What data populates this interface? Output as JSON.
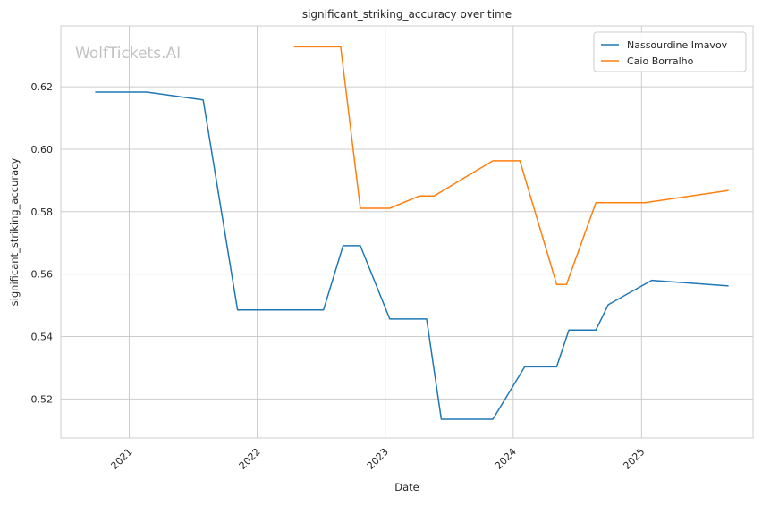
{
  "chart_data": {
    "type": "line",
    "title": "significant_striking_accuracy over time",
    "xlabel": "Date",
    "ylabel": "significant_striking_accuracy",
    "watermark": "WolfTickets.AI",
    "x_ticks": [
      "2021",
      "2022",
      "2023",
      "2024",
      "2025"
    ],
    "y_ticks": [
      "0.52",
      "0.54",
      "0.56",
      "0.58",
      "0.60",
      "0.62"
    ],
    "xlim": [
      "2020-06-20",
      "2025-11-15"
    ],
    "ylim": [
      0.5075,
      0.6395
    ],
    "grid": true,
    "legend_position": "top-right",
    "series": [
      {
        "name": "Nassourdine Imavov",
        "color": "#1f77b4",
        "points": [
          [
            "2020-09-26",
            0.6183
          ],
          [
            "2021-02-20",
            0.6183
          ],
          [
            "2021-07-31",
            0.6158
          ],
          [
            "2021-11-06",
            0.5485
          ],
          [
            "2022-07-09",
            0.5485
          ],
          [
            "2022-09-03",
            0.5691
          ],
          [
            "2022-10-22",
            0.5691
          ],
          [
            "2023-01-14",
            0.5456
          ],
          [
            "2023-04-29",
            0.5456
          ],
          [
            "2023-06-10",
            0.5135
          ],
          [
            "2023-11-04",
            0.5135
          ],
          [
            "2024-02-03",
            0.5303
          ],
          [
            "2024-05-04",
            0.5303
          ],
          [
            "2024-06-08",
            0.5421
          ],
          [
            "2024-08-24",
            0.5421
          ],
          [
            "2024-09-28",
            0.5502
          ],
          [
            "2025-01-30",
            0.558
          ],
          [
            "2025-09-06",
            0.5562
          ]
        ]
      },
      {
        "name": "Caio Borralho",
        "color": "#ff7f0e",
        "points": [
          [
            "2022-04-16",
            0.6328
          ],
          [
            "2022-08-27",
            0.6328
          ],
          [
            "2022-10-22",
            0.5811
          ],
          [
            "2023-01-14",
            0.5811
          ],
          [
            "2023-04-08",
            0.585
          ],
          [
            "2023-05-20",
            0.585
          ],
          [
            "2023-11-04",
            0.5963
          ],
          [
            "2024-01-20",
            0.5963
          ],
          [
            "2024-05-04",
            0.5567
          ],
          [
            "2024-06-01",
            0.5567
          ],
          [
            "2024-08-24",
            0.5829
          ],
          [
            "2025-01-11",
            0.5829
          ],
          [
            "2025-09-06",
            0.5868
          ]
        ]
      }
    ]
  }
}
